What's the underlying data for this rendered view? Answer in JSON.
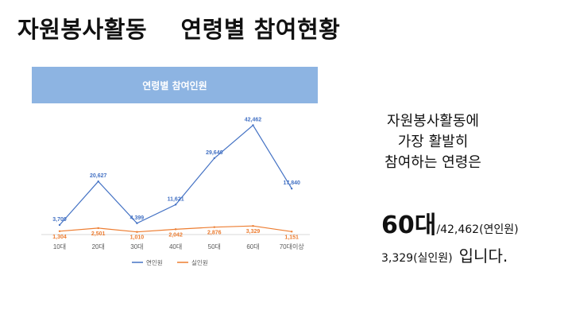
{
  "title": "자원봉사활동    연령별 참여현황",
  "summary": {
    "lines": [
      "자원봉사활동에",
      "가장 활발히",
      "참여하는 연령은"
    ],
    "highlight": "60대",
    "detail_1": "/42,462(연인원)",
    "detail_2": "3,329(실인원)",
    "ending": "입니다."
  },
  "chart_data": {
    "type": "line",
    "title": "연령별 참여인원",
    "categories": [
      "10대",
      "20대",
      "30대",
      "40대",
      "50대",
      "60대",
      "70대이상"
    ],
    "series": [
      {
        "name": "연인원",
        "color": "#4472c4",
        "values": [
          3709,
          20627,
          4399,
          11621,
          29646,
          42462,
          17840
        ],
        "labels": [
          "3,709",
          "20,627",
          "4,399",
          "11,621",
          "29,646",
          "42,462",
          "17,840"
        ]
      },
      {
        "name": "실인원",
        "color": "#ed7d31",
        "values": [
          1304,
          2501,
          1010,
          2042,
          2876,
          3329,
          1151
        ],
        "labels": [
          "1,304",
          "2,501",
          "1,010",
          "2,042",
          "2,876",
          "3,329",
          "1,151"
        ]
      }
    ],
    "ylim": [
      0,
      46000
    ],
    "grid": false,
    "legend": "bottom"
  }
}
